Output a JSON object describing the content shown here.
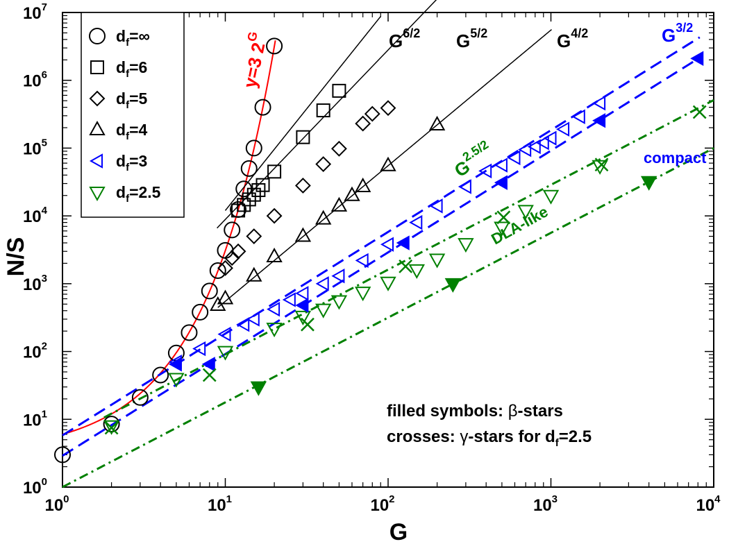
{
  "chart_data": {
    "type": "scatter",
    "title": "",
    "xlabel": "G",
    "ylabel": "N/S",
    "xscale": "log",
    "yscale": "log",
    "xlim": [
      1,
      10000
    ],
    "ylim": [
      1,
      10000000
    ],
    "x_ticks": [
      {
        "base": "10",
        "exp": "0"
      },
      {
        "base": "10",
        "exp": "1"
      },
      {
        "base": "10",
        "exp": "2"
      },
      {
        "base": "10",
        "exp": "3"
      },
      {
        "base": "10",
        "exp": "4"
      }
    ],
    "y_ticks": [
      {
        "base": "10",
        "exp": "0"
      },
      {
        "base": "10",
        "exp": "1"
      },
      {
        "base": "10",
        "exp": "2"
      },
      {
        "base": "10",
        "exp": "3"
      },
      {
        "base": "10",
        "exp": "4"
      },
      {
        "base": "10",
        "exp": "5"
      },
      {
        "base": "10",
        "exp": "6"
      },
      {
        "base": "10",
        "exp": "7"
      }
    ],
    "legend_position": "top-left",
    "legend": [
      {
        "symbol": "circle",
        "color": "#000000",
        "label_main": "d",
        "label_sub": "f",
        "label_rest": "=∞"
      },
      {
        "symbol": "square",
        "color": "#000000",
        "label_main": "d",
        "label_sub": "f",
        "label_rest": "=6"
      },
      {
        "symbol": "diamond",
        "color": "#000000",
        "label_main": "d",
        "label_sub": "f",
        "label_rest": "=5"
      },
      {
        "symbol": "triangle-up",
        "color": "#000000",
        "label_main": "d",
        "label_sub": "f",
        "label_rest": "=4"
      },
      {
        "symbol": "triangle-left",
        "color": "#0000ff",
        "label_main": "d",
        "label_sub": "f",
        "label_rest": "=3"
      },
      {
        "symbol": "triangle-down",
        "color": "#008000",
        "label_main": "d",
        "label_sub": "f",
        "label_rest": "=2.5"
      }
    ],
    "series": [
      {
        "name": "d_f=∞",
        "symbol": "circle",
        "color": "#000000",
        "filled": false,
        "x": [
          1,
          2,
          3,
          4,
          5,
          6,
          7,
          8,
          9,
          10,
          11,
          12,
          13,
          14,
          15,
          17,
          20
        ],
        "y": [
          3,
          8.5,
          21,
          45,
          95,
          190,
          380,
          780,
          1560,
          3100,
          6200,
          12400,
          25000,
          50000,
          100000,
          400000,
          3200000
        ]
      },
      {
        "name": "d_f=6",
        "symbol": "square",
        "color": "#000000",
        "filled": false,
        "x": [
          12,
          13,
          14,
          15,
          16,
          17,
          20,
          30,
          40,
          50
        ],
        "y": [
          12000,
          14500,
          17500,
          20500,
          24000,
          28500,
          45000,
          145000,
          360000,
          700000
        ]
      },
      {
        "name": "d_f=5",
        "symbol": "diamond",
        "color": "#000000",
        "filled": false,
        "x": [
          10,
          11,
          12,
          15,
          20,
          30,
          40,
          50,
          70,
          80,
          100
        ],
        "y": [
          1700,
          2400,
          3000,
          5000,
          10000,
          28000,
          58000,
          98000,
          230000,
          320000,
          390000
        ]
      },
      {
        "name": "d_f=4",
        "symbol": "triangle-up",
        "color": "#000000",
        "filled": false,
        "x": [
          9,
          10,
          15,
          20,
          30,
          40,
          50,
          60,
          70,
          100,
          200
        ],
        "y": [
          480,
          600,
          1300,
          2500,
          5000,
          9000,
          14000,
          20000,
          27000,
          55000,
          220000
        ]
      },
      {
        "name": "d_f=3",
        "symbol": "triangle-left",
        "color": "#0000ff",
        "filled": false,
        "x": [
          5,
          7,
          10,
          13,
          15,
          20,
          25,
          30,
          40,
          50,
          70,
          100,
          150,
          200,
          300,
          400,
          500,
          600,
          700,
          800,
          900,
          1000,
          1200,
          1500,
          2000
        ],
        "y": [
          70,
          110,
          180,
          250,
          300,
          420,
          580,
          720,
          1000,
          1300,
          2200,
          3800,
          8000,
          14000,
          27000,
          46000,
          56000,
          72000,
          95000,
          105000,
          120000,
          140000,
          190000,
          290000,
          460000
        ]
      },
      {
        "name": "d_f=2.5",
        "symbol": "triangle-down",
        "color": "#008000",
        "filled": false,
        "x": [
          2,
          5,
          10,
          20,
          30,
          40,
          50,
          70,
          100,
          150,
          200,
          300,
          500,
          700,
          1000,
          2000
        ],
        "y": [
          8,
          40,
          100,
          220,
          330,
          420,
          560,
          750,
          1050,
          1600,
          2300,
          3900,
          6800,
          12000,
          20000,
          55000
        ]
      },
      {
        "name": "β-stars d_f=3",
        "symbol": "triangle-left",
        "color": "#0000ff",
        "filled": true,
        "x": [
          5,
          8,
          30,
          125,
          500,
          2000,
          8000
        ],
        "y": [
          65,
          65,
          480,
          4000,
          31000,
          255000,
          2100000
        ]
      },
      {
        "name": "β-stars d_f=2.5",
        "symbol": "triangle-down",
        "color": "#008000",
        "filled": true,
        "x": [
          16,
          250,
          4000
        ],
        "y": [
          30,
          1000,
          32000
        ]
      },
      {
        "name": "γ-stars d_f=2.5",
        "symbol": "cross",
        "color": "#008000",
        "filled": false,
        "x": [
          2,
          8,
          32,
          128,
          512,
          2048,
          8192
        ],
        "y": [
          7.5,
          45,
          250,
          1800,
          9500,
          57000,
          340000
        ]
      }
    ],
    "lines": [
      {
        "name": "y=3 2^G",
        "style": "solid",
        "color": "#ff0000",
        "kind": "exp",
        "a": 3,
        "b": 2,
        "x_range": [
          1,
          20.3
        ]
      },
      {
        "name": "G^{6/2}",
        "style": "solid",
        "color": "#000000",
        "kind": "power",
        "a": 12,
        "p": 3,
        "x_range": [
          10,
          90
        ]
      },
      {
        "name": "G^{5/2}",
        "style": "solid",
        "color": "#000000",
        "kind": "power",
        "a": 28,
        "p": 2.5,
        "x_range": [
          8.9,
          230
        ]
      },
      {
        "name": "G^{4/2}",
        "style": "solid",
        "color": "#000000",
        "kind": "power",
        "a": 5.5,
        "p": 2,
        "x_range": [
          9,
          1010
        ]
      },
      {
        "name": "G^{3/2}",
        "style": "dashed",
        "color": "#0000ff",
        "kind": "power",
        "a": 5.8,
        "p": 1.5,
        "x_range": [
          1,
          8200
        ]
      },
      {
        "name": "compact β-fit",
        "style": "dashed",
        "color": "#0000ff",
        "kind": "power",
        "a": 2.9,
        "p": 1.5,
        "x_range": [
          1,
          8200
        ]
      },
      {
        "name": "G^{2.5/2}",
        "style": "dashdot",
        "color": "#008000",
        "kind": "power",
        "a": 5.1,
        "p": 1.25,
        "x_range": [
          1.8,
          10000
        ]
      },
      {
        "name": "DLA-like fit",
        "style": "dashdot",
        "color": "#008000",
        "kind": "power",
        "a": 1,
        "p": 1.25,
        "x_range": [
          1,
          10000
        ]
      }
    ],
    "annotations": [
      {
        "text": "y=3 2",
        "sup": "G",
        "color": "#ff0000"
      },
      {
        "text": "G",
        "sup": "6/2",
        "color": "#000000"
      },
      {
        "text": "G",
        "sup": "5/2",
        "color": "#000000"
      },
      {
        "text": "G",
        "sup": "4/2",
        "color": "#000000"
      },
      {
        "text": "G",
        "sup": "3/2",
        "color": "#0000ff"
      },
      {
        "text": "G",
        "sup": "2.5/2",
        "color": "#008000"
      },
      {
        "text": "compact",
        "sup": "",
        "color": "#0000ff"
      },
      {
        "text": "DLA-like",
        "sup": "",
        "color": "#008000"
      }
    ],
    "notes": {
      "line1_prefix": "filled symbols: ",
      "line1_greek": "β",
      "line1_suffix": "-stars",
      "line2_prefix": "crosses: ",
      "line2_greek": "γ",
      "line2_suffix": "-stars for d",
      "line2_sub": "f",
      "line2_end": "=2.5"
    }
  }
}
